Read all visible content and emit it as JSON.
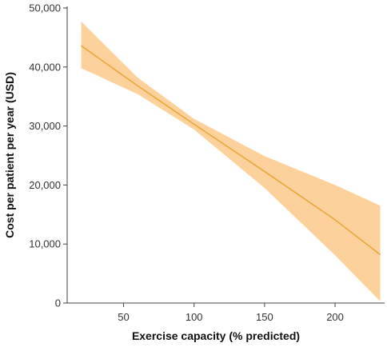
{
  "chart_data": {
    "type": "line",
    "title": "",
    "xlabel": "Exercise capacity (% predicted)",
    "ylabel": "Cost per patient per year (USD)",
    "xlim": [
      10,
      234
    ],
    "ylim": [
      0,
      50000
    ],
    "x_ticks": [
      50,
      100,
      150,
      200
    ],
    "x_tick_labels": [
      "50",
      "100",
      "150",
      "200"
    ],
    "y_ticks": [
      0,
      10000,
      20000,
      30000,
      40000,
      50000
    ],
    "y_tick_labels": [
      "0",
      "10,000",
      "20,000",
      "30,000",
      "40,000",
      "50,000"
    ],
    "grid": false,
    "legend": "none",
    "series": [
      {
        "x": [
          20,
          60,
          100,
          150,
          200,
          232
        ],
        "values": [
          43600,
          36800,
          30300,
          22300,
          14100,
          8200
        ],
        "ci_lower": [
          39800,
          35400,
          29400,
          19500,
          8100,
          300
        ],
        "ci_upper": [
          47700,
          38200,
          31200,
          24900,
          20000,
          16500
        ]
      }
    ],
    "colors": {
      "line": "#e8a73a",
      "band": "#fbc98a"
    }
  }
}
